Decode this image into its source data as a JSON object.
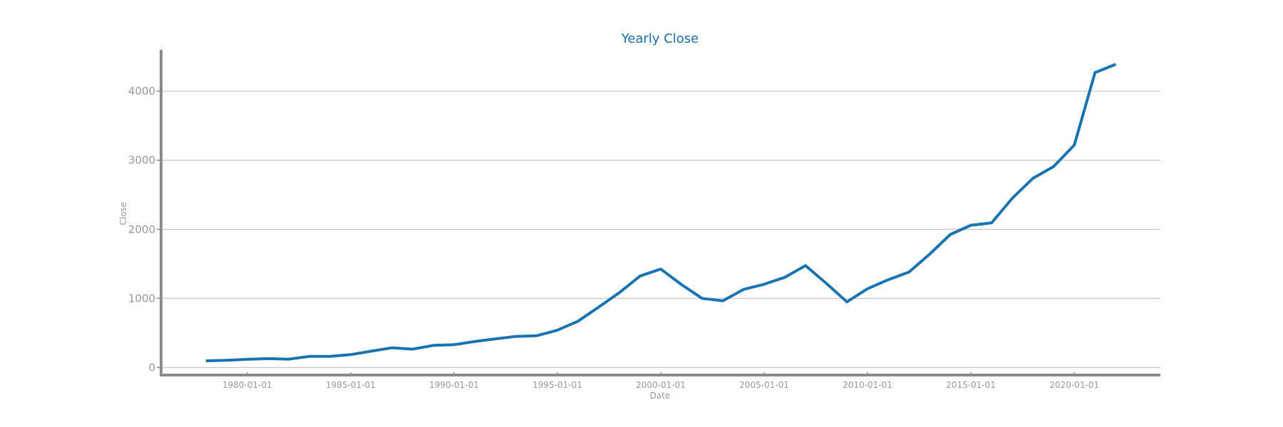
{
  "chart_data": {
    "type": "line",
    "title": "Yearly Close",
    "xlabel": "Date",
    "ylabel": "Close",
    "x_ticks": [
      "1980-01-01",
      "1985-01-01",
      "1990-01-01",
      "1995-01-01",
      "2000-01-01",
      "2005-01-01",
      "2010-01-01",
      "2015-01-01",
      "2020-01-01"
    ],
    "y_ticks": [
      0,
      1000,
      2000,
      3000,
      4000
    ],
    "ylim": [
      -110,
      4600
    ],
    "xlim": [
      "1975-11-01",
      "2024-03-01"
    ],
    "grid": "horizontal",
    "legend": "none",
    "colors": {
      "line": "#1a75b2",
      "title": "#1a75b2",
      "axis": "#8c8c8c",
      "grid": "#cfcfcf",
      "text": "#9a9a9a"
    },
    "series": [
      {
        "x": [
          "1978-01-01",
          "1979-01-01",
          "1980-01-01",
          "1981-01-01",
          "1982-01-01",
          "1983-01-01",
          "1984-01-01",
          "1985-01-01",
          "1986-01-01",
          "1987-01-01",
          "1988-01-01",
          "1989-01-01",
          "1990-01-01",
          "1991-01-01",
          "1992-01-01",
          "1993-01-01",
          "1994-01-01",
          "1995-01-01",
          "1996-01-01",
          "1997-01-01",
          "1998-01-01",
          "1999-01-01",
          "2000-01-01",
          "2001-01-01",
          "2002-01-01",
          "2003-01-01",
          "2004-01-01",
          "2005-01-01",
          "2006-01-01",
          "2007-01-01",
          "2008-01-01",
          "2009-01-01",
          "2010-01-01",
          "2011-01-01",
          "2012-01-01",
          "2013-01-01",
          "2014-01-01",
          "2015-01-01",
          "2016-01-01",
          "2017-01-01",
          "2018-01-01",
          "2019-01-01",
          "2020-01-01",
          "2021-01-01",
          "2022-01-01"
        ],
        "values": [
          96,
          104,
          118,
          128,
          120,
          160,
          160,
          186,
          236,
          285,
          265,
          320,
          330,
          375,
          415,
          450,
          460,
          540,
          670,
          875,
          1085,
          1325,
          1425,
          1200,
          1000,
          965,
          1130,
          1205,
          1305,
          1475,
          1220,
          950,
          1140,
          1270,
          1380,
          1640,
          1925,
          2060,
          2095,
          2450,
          2740,
          2910,
          3220,
          4270,
          4390
        ]
      }
    ]
  }
}
